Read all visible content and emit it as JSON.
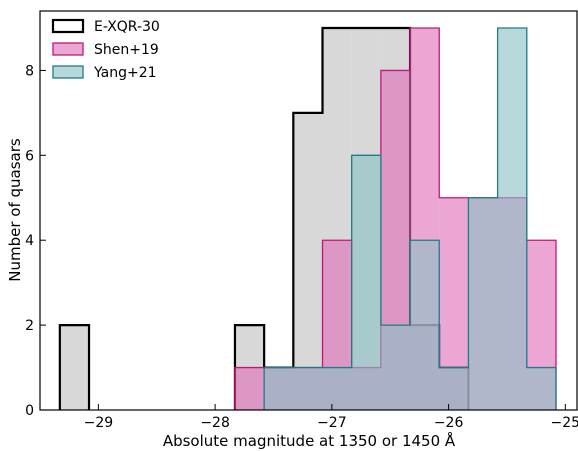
{
  "chart_data": {
    "type": "histogram",
    "xlabel": "Absolute magnitude at 1350 or 1450 Å",
    "ylabel": "Number of quasars",
    "xlim": [
      -29.5,
      -24.9
    ],
    "ylim": [
      0,
      9.4
    ],
    "xticks": [
      -29,
      -28,
      -27,
      -26,
      -25
    ],
    "xtick_labels": [
      "−29",
      "−28",
      "−27",
      "−26",
      "−25"
    ],
    "yticks": [
      0,
      2,
      4,
      6,
      8
    ],
    "ytick_labels": [
      "0",
      "2",
      "4",
      "6",
      "8"
    ],
    "bin_width": 0.25,
    "grid": false,
    "legend_position": "top-left",
    "series": [
      {
        "name": "E-XQR-30",
        "fill": "#c0c0c0",
        "edge": "#000000",
        "bins": [
          {
            "x0": -29.33,
            "count": 2
          },
          {
            "x0": -27.83,
            "count": 2
          },
          {
            "x0": -27.58,
            "count": 1
          },
          {
            "x0": -27.33,
            "count": 7
          },
          {
            "x0": -27.08,
            "count": 9
          },
          {
            "x0": -26.83,
            "count": 9
          },
          {
            "x0": -26.58,
            "count": 9
          },
          {
            "x0": -26.33,
            "count": 2
          },
          {
            "x0": -26.08,
            "count": 1
          }
        ]
      },
      {
        "name": "Shen+19",
        "fill": "#e070b8",
        "edge": "#c0187a",
        "bins": [
          {
            "x0": -27.83,
            "count": 1
          },
          {
            "x0": -27.58,
            "count": 1
          },
          {
            "x0": -27.33,
            "count": 1
          },
          {
            "x0": -27.08,
            "count": 4
          },
          {
            "x0": -26.83,
            "count": 1
          },
          {
            "x0": -26.58,
            "count": 8
          },
          {
            "x0": -26.33,
            "count": 9
          },
          {
            "x0": -26.08,
            "count": 5
          },
          {
            "x0": -25.83,
            "count": 5
          },
          {
            "x0": -25.58,
            "count": 5
          },
          {
            "x0": -25.33,
            "count": 4
          }
        ]
      },
      {
        "name": "Yang+21",
        "fill": "#8ac2c6",
        "edge": "#1f7b86",
        "bins": [
          {
            "x0": -27.58,
            "count": 1
          },
          {
            "x0": -27.33,
            "count": 1
          },
          {
            "x0": -27.08,
            "count": 1
          },
          {
            "x0": -26.83,
            "count": 6
          },
          {
            "x0": -26.58,
            "count": 2
          },
          {
            "x0": -26.33,
            "count": 4
          },
          {
            "x0": -26.08,
            "count": 1
          },
          {
            "x0": -25.83,
            "count": 5
          },
          {
            "x0": -25.58,
            "count": 9
          },
          {
            "x0": -25.33,
            "count": 1
          }
        ]
      }
    ]
  }
}
